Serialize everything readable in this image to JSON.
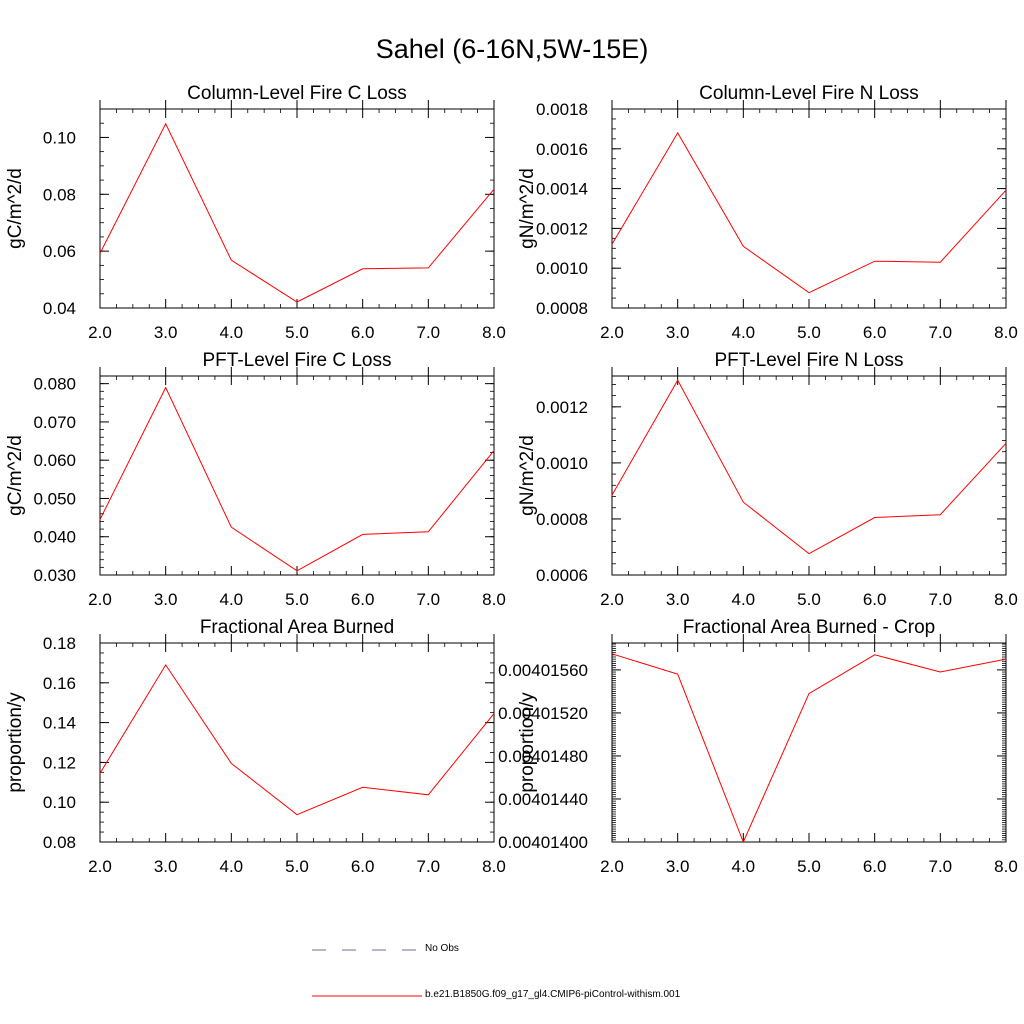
{
  "figure": {
    "title": "Sahel (6-16N,5W-15E)"
  },
  "legend": {
    "obs_label": "No Obs",
    "model_label": "b.e21.B1850G.f09_g17_gl4.CMIP6-piControl-withism.001",
    "obs_color": "#6c6c9c",
    "model_color": "#ff0000"
  },
  "chart_data": [
    {
      "type": "line",
      "title": "Column-Level Fire C Loss",
      "ylabel": "gC/m^2/d",
      "xlabel": "",
      "x": [
        2,
        3,
        4,
        5,
        6,
        7,
        8
      ],
      "x_tick_labels": [
        "2.0",
        "3.0",
        "4.0",
        "5.0",
        "6.0",
        "7.0",
        "8.0"
      ],
      "xlim": [
        2,
        8
      ],
      "ylim": [
        0.04,
        0.11
      ],
      "y_ticks": [
        0.04,
        0.06,
        0.08,
        0.1
      ],
      "y_tick_labels": [
        "0.04",
        "0.06",
        "0.08",
        "0.10"
      ],
      "y_minor_step": 0.005,
      "series": [
        {
          "name": "b.e21.B1850G.f09_g17_gl4.CMIP6-piControl-withism.001",
          "values": [
            0.0592,
            0.1048,
            0.0568,
            0.0421,
            0.0538,
            0.0541,
            0.0818
          ]
        }
      ]
    },
    {
      "type": "line",
      "title": "Column-Level Fire N Loss",
      "ylabel": "gN/m^2/d",
      "xlabel": "",
      "x": [
        2,
        3,
        4,
        5,
        6,
        7,
        8
      ],
      "x_tick_labels": [
        "2.0",
        "3.0",
        "4.0",
        "5.0",
        "6.0",
        "7.0",
        "8.0"
      ],
      "xlim": [
        2,
        8
      ],
      "ylim": [
        0.0008,
        0.0018
      ],
      "y_ticks": [
        0.0008,
        0.001,
        0.0012,
        0.0014,
        0.0016,
        0.0018
      ],
      "y_tick_labels": [
        "0.0008",
        "0.0010",
        "0.0012",
        "0.0014",
        "0.0016",
        "0.0018"
      ],
      "y_minor_step": 5e-05,
      "series": [
        {
          "name": "b.e21.B1850G.f09_g17_gl4.CMIP6-piControl-withism.001",
          "values": [
            0.00112,
            0.00168,
            0.00111,
            0.000877,
            0.001035,
            0.00103,
            0.001392
          ]
        }
      ]
    },
    {
      "type": "line",
      "title": "PFT-Level Fire C Loss",
      "ylabel": "gC/m^2/d",
      "xlabel": "",
      "x": [
        2,
        3,
        4,
        5,
        6,
        7,
        8
      ],
      "x_tick_labels": [
        "2.0",
        "3.0",
        "4.0",
        "5.0",
        "6.0",
        "7.0",
        "8.0"
      ],
      "xlim": [
        2,
        8
      ],
      "ylim": [
        0.03,
        0.082
      ],
      "y_ticks": [
        0.03,
        0.04,
        0.05,
        0.06,
        0.07,
        0.08
      ],
      "y_tick_labels": [
        "0.030",
        "0.040",
        "0.050",
        "0.060",
        "0.070",
        "0.080"
      ],
      "y_minor_step": 0.002,
      "series": [
        {
          "name": "b.e21.B1850G.f09_g17_gl4.CMIP6-piControl-withism.001",
          "values": [
            0.0445,
            0.079,
            0.0425,
            0.0311,
            0.0406,
            0.0413,
            0.0625
          ]
        }
      ]
    },
    {
      "type": "line",
      "title": "PFT-Level Fire N Loss",
      "ylabel": "gN/m^2/d",
      "xlabel": "",
      "x": [
        2,
        3,
        4,
        5,
        6,
        7,
        8
      ],
      "x_tick_labels": [
        "2.0",
        "3.0",
        "4.0",
        "5.0",
        "6.0",
        "7.0",
        "8.0"
      ],
      "xlim": [
        2,
        8
      ],
      "ylim": [
        0.0006,
        0.00131
      ],
      "y_ticks": [
        0.0006,
        0.0008,
        0.001,
        0.0012
      ],
      "y_tick_labels": [
        "0.0006",
        "0.0008",
        "0.0010",
        "0.0012"
      ],
      "y_minor_step": 4e-05,
      "series": [
        {
          "name": "b.e21.B1850G.f09_g17_gl4.CMIP6-piControl-withism.001",
          "values": [
            0.000885,
            0.001295,
            0.00086,
            0.000676,
            0.000805,
            0.000815,
            0.00107
          ]
        }
      ]
    },
    {
      "type": "line",
      "title": "Fractional Area Burned",
      "ylabel": "proportion/y",
      "xlabel": "",
      "x": [
        2,
        3,
        4,
        5,
        6,
        7,
        8
      ],
      "x_tick_labels": [
        "2.0",
        "3.0",
        "4.0",
        "5.0",
        "6.0",
        "7.0",
        "8.0"
      ],
      "xlim": [
        2,
        8
      ],
      "ylim": [
        0.08,
        0.18
      ],
      "y_ticks": [
        0.08,
        0.1,
        0.12,
        0.14,
        0.16,
        0.18
      ],
      "y_tick_labels": [
        "0.08",
        "0.10",
        "0.12",
        "0.14",
        "0.16",
        "0.18"
      ],
      "y_minor_step": 0.005,
      "series": [
        {
          "name": "b.e21.B1850G.f09_g17_gl4.CMIP6-piControl-withism.001",
          "values": [
            0.1145,
            0.169,
            0.1195,
            0.0937,
            0.1075,
            0.1037,
            0.1445
          ]
        }
      ]
    },
    {
      "type": "line",
      "title": "Fractional Area Burned - Crop",
      "ylabel": "proportion/y",
      "xlabel": "",
      "x": [
        2,
        3,
        4,
        5,
        6,
        7,
        8
      ],
      "x_tick_labels": [
        "2.0",
        "3.0",
        "4.0",
        "5.0",
        "6.0",
        "7.0",
        "8.0"
      ],
      "xlim": [
        2,
        8
      ],
      "ylim": [
        0.004014,
        0.00401585
      ],
      "y_ticks": [
        0.004014,
        0.0040144,
        0.0040148,
        0.0040152,
        0.0040156
      ],
      "y_tick_labels": [
        "0.00401400",
        "0.00401440",
        "0.00401480",
        "0.00401520",
        "0.00401560"
      ],
      "y_minor_step": 2e-08,
      "series": [
        {
          "name": "b.e21.B1850G.f09_g17_gl4.CMIP6-piControl-withism.001",
          "values": [
            0.00401575,
            0.00401556,
            0.004014,
            0.00401538,
            0.00401574,
            0.00401558,
            0.0040157
          ]
        }
      ]
    }
  ]
}
